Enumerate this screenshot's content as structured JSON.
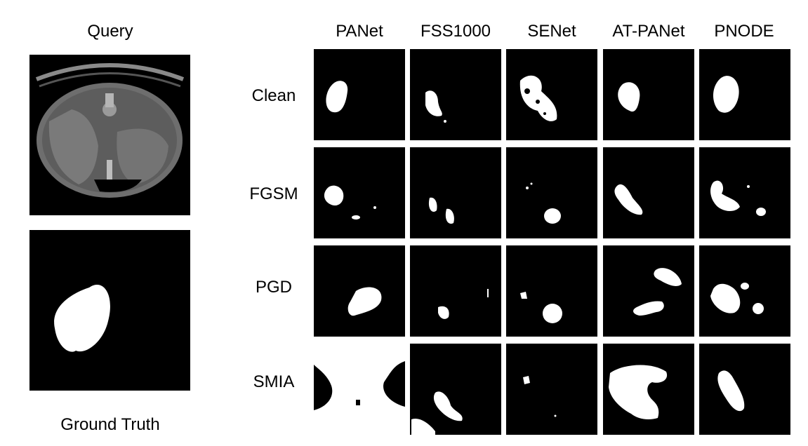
{
  "query_label": "Query",
  "ground_truth_label": "Ground Truth",
  "columns": [
    "PANet",
    "FSS1000",
    "SENet",
    "AT-PANet",
    "PNODE"
  ],
  "rows": [
    "Clean",
    "FGSM",
    "PGD",
    "SMIA"
  ],
  "colors": {
    "background": "#ffffff",
    "mask_bg": "#000000",
    "mask_fg": "#ffffff",
    "ct_gray": "#6e6e6e"
  }
}
